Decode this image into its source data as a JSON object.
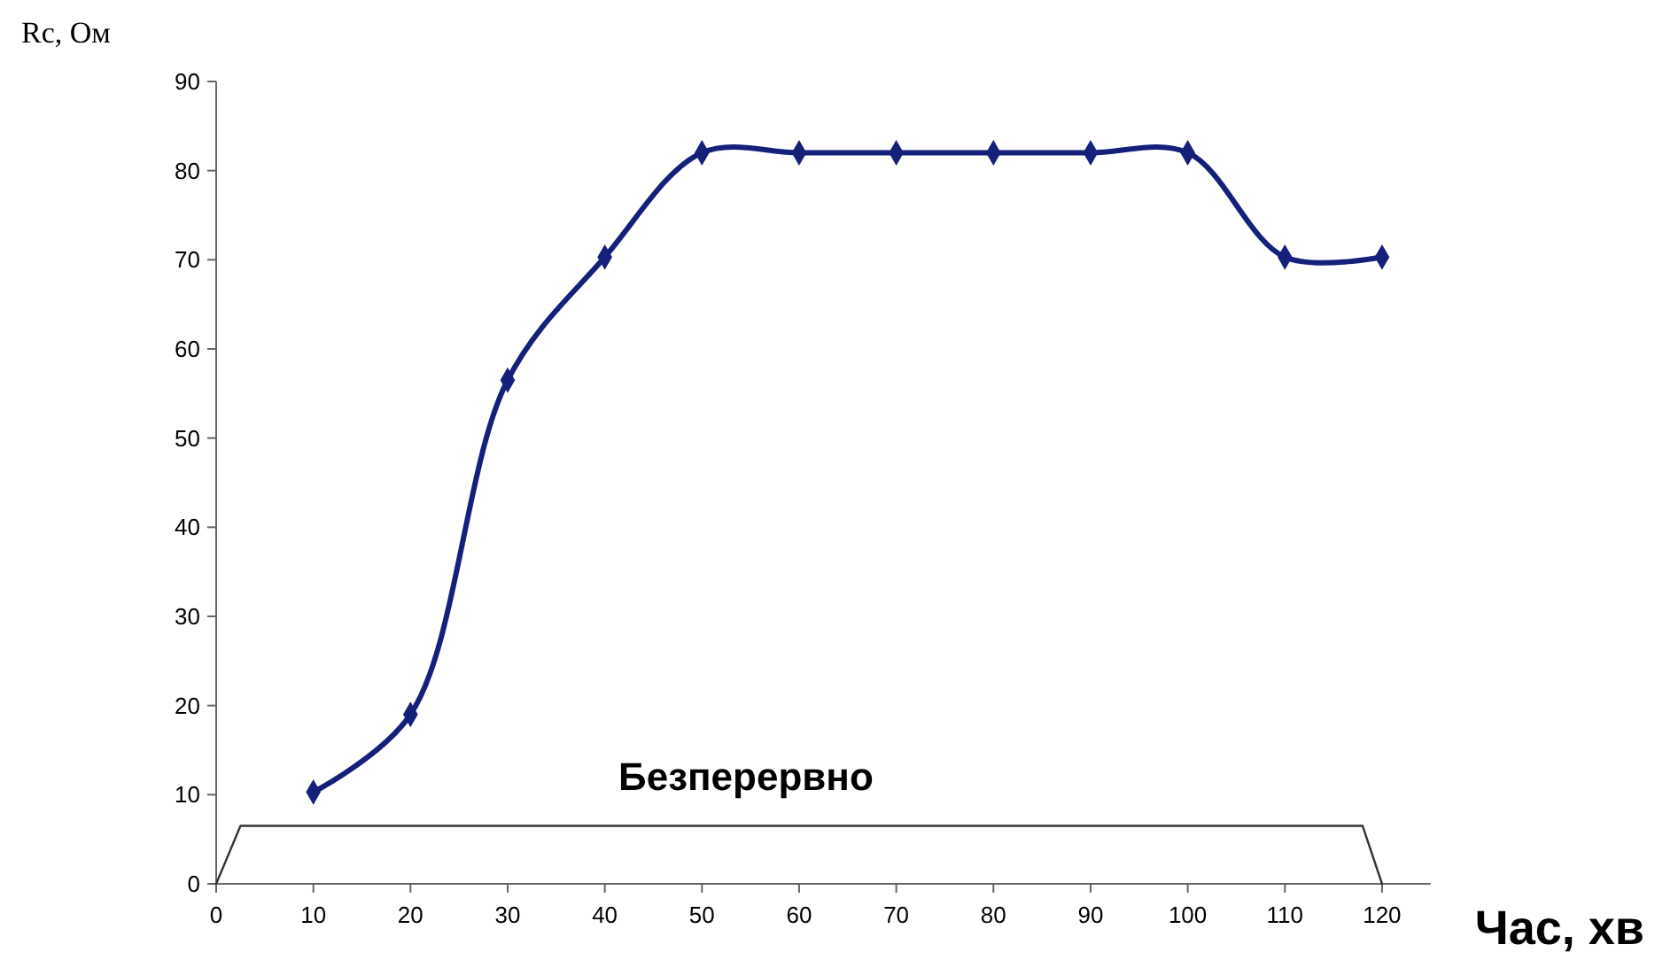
{
  "chart_data": {
    "type": "line",
    "xlabel": "Час, хв",
    "ylabel": "Rc, Ом",
    "x": [
      10,
      20,
      30,
      40,
      50,
      60,
      70,
      80,
      90,
      100,
      110,
      120
    ],
    "series": [
      {
        "color": "#14207a",
        "values": [
          10.3,
          19,
          56.5,
          70.3,
          82,
          82,
          82,
          82,
          82,
          82,
          70.3,
          70.3
        ]
      },
      {
        "color": "#333333",
        "x": [
          0,
          2.5,
          118,
          120
        ],
        "values": [
          0,
          6.5,
          6.5,
          0
        ],
        "marker": "none"
      }
    ],
    "xlim": [
      0,
      125
    ],
    "xticks": [
      0,
      10,
      20,
      30,
      40,
      50,
      60,
      70,
      80,
      90,
      100,
      110,
      120
    ],
    "ylim": [
      0,
      90
    ],
    "yticks": [
      0,
      10,
      20,
      30,
      40,
      50,
      60,
      70,
      80,
      90
    ],
    "grid": false,
    "marker": "diamond",
    "line_style": "solid",
    "annotations": [
      "Безперервно"
    ]
  }
}
